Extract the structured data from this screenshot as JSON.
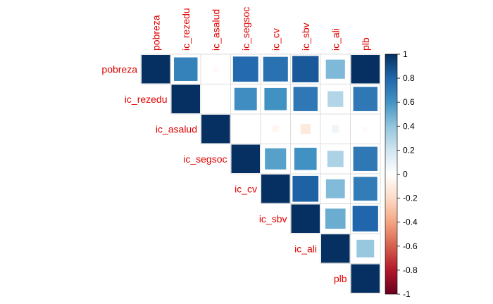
{
  "chart_data": {
    "type": "heatmap",
    "subtype": "correlation-matrix-upper-square",
    "variables": [
      "pobreza",
      "ic_rezedu",
      "ic_asalud",
      "ic_segsoc",
      "ic_cv",
      "ic_sbv",
      "ic_ali",
      "plb"
    ],
    "matrix": [
      [
        1.0,
        0.68,
        -0.03,
        0.78,
        0.75,
        0.85,
        0.45,
        1.0
      ],
      [
        0.68,
        1.0,
        0.0,
        0.62,
        0.61,
        0.72,
        0.3,
        0.72
      ],
      [
        -0.03,
        0.0,
        1.0,
        0.0,
        -0.05,
        -0.12,
        0.07,
        -0.03
      ],
      [
        0.78,
        0.62,
        0.0,
        1.0,
        0.55,
        0.61,
        0.32,
        0.72
      ],
      [
        0.75,
        0.61,
        -0.05,
        0.55,
        1.0,
        0.82,
        0.44,
        0.7
      ],
      [
        0.85,
        0.72,
        -0.12,
        0.61,
        0.82,
        1.0,
        0.5,
        0.8
      ],
      [
        0.45,
        0.3,
        0.07,
        0.32,
        0.44,
        0.5,
        1.0,
        0.38
      ],
      [
        1.0,
        0.72,
        -0.03,
        0.72,
        0.7,
        0.8,
        0.38,
        1.0
      ]
    ],
    "colorbar": {
      "range": [
        -1,
        1
      ],
      "ticks": [
        "1",
        "0.8",
        "0.6",
        "0.4",
        "0.2",
        "0",
        "-0.2",
        "-0.4",
        "-0.6",
        "-0.8",
        "-1"
      ]
    },
    "colors": {
      "label": "#e00000",
      "grid": "#dcdcdc",
      "palette": [
        "#67001f",
        "#b2182b",
        "#d6604d",
        "#f4a582",
        "#fddbc7",
        "#ffffff",
        "#d1e5f0",
        "#92c5de",
        "#4393c3",
        "#2166ac",
        "#053061"
      ]
    }
  }
}
